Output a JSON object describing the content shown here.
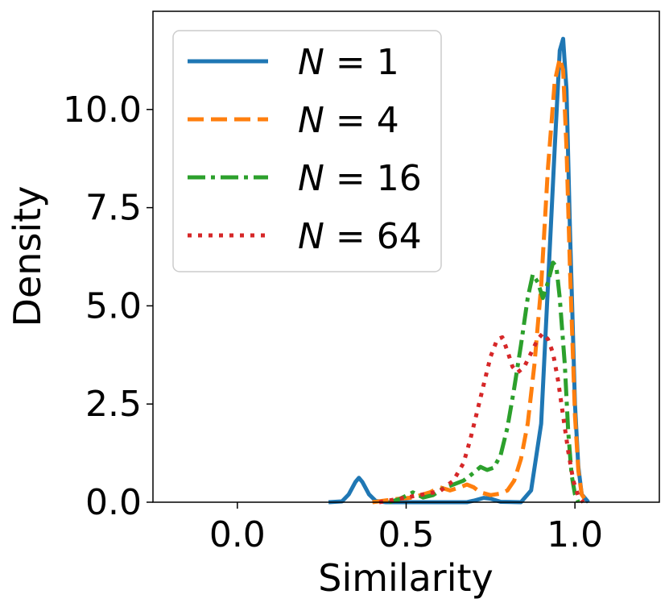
{
  "chart_data": {
    "type": "line",
    "xlabel": "Similarity",
    "ylabel": "Density",
    "xlim": [
      -0.25,
      1.25
    ],
    "ylim": [
      0,
      12.5
    ],
    "xticks": [
      "0.0",
      "0.5",
      "1.0"
    ],
    "xtick_values": [
      0.0,
      0.5,
      1.0
    ],
    "yticks": [
      "0.0",
      "2.5",
      "5.0",
      "7.5",
      "10.0"
    ],
    "ytick_values": [
      0.0,
      2.5,
      5.0,
      7.5,
      10.0
    ],
    "grid": false,
    "legend_position": "upper-left",
    "series": [
      {
        "name": "N = 1",
        "legend_var": "N",
        "legend_val": "1",
        "color": "#1f77b4",
        "style": "solid",
        "points": [
          [
            0.27,
            0
          ],
          [
            0.31,
            0.02
          ],
          [
            0.33,
            0.2
          ],
          [
            0.35,
            0.52
          ],
          [
            0.36,
            0.62
          ],
          [
            0.37,
            0.52
          ],
          [
            0.39,
            0.2
          ],
          [
            0.41,
            0.03
          ],
          [
            0.44,
            0
          ],
          [
            0.6,
            0
          ],
          [
            0.68,
            0
          ],
          [
            0.7,
            0.04
          ],
          [
            0.73,
            0.11
          ],
          [
            0.75,
            0.09
          ],
          [
            0.78,
            0.01
          ],
          [
            0.84,
            0
          ],
          [
            0.87,
            0.3
          ],
          [
            0.9,
            2.0
          ],
          [
            0.92,
            5.5
          ],
          [
            0.94,
            9.0
          ],
          [
            0.955,
            11.5
          ],
          [
            0.965,
            11.8
          ],
          [
            0.975,
            10.5
          ],
          [
            0.985,
            7.0
          ],
          [
            1.0,
            2.5
          ],
          [
            1.01,
            0.9
          ],
          [
            1.02,
            0.2
          ],
          [
            1.04,
            0
          ]
        ]
      },
      {
        "name": "N = 4",
        "legend_var": "N",
        "legend_val": "4",
        "color": "#ff7f0e",
        "style": "dashed",
        "points": [
          [
            0.4,
            0
          ],
          [
            0.47,
            0.08
          ],
          [
            0.52,
            0.12
          ],
          [
            0.57,
            0.25
          ],
          [
            0.6,
            0.38
          ],
          [
            0.63,
            0.3
          ],
          [
            0.66,
            0.38
          ],
          [
            0.68,
            0.45
          ],
          [
            0.7,
            0.38
          ],
          [
            0.72,
            0.25
          ],
          [
            0.75,
            0.18
          ],
          [
            0.78,
            0.22
          ],
          [
            0.8,
            0.3
          ],
          [
            0.82,
            0.55
          ],
          [
            0.84,
            1.1
          ],
          [
            0.86,
            2.0
          ],
          [
            0.88,
            3.5
          ],
          [
            0.9,
            5.5
          ],
          [
            0.92,
            8.5
          ],
          [
            0.94,
            10.7
          ],
          [
            0.955,
            11.3
          ],
          [
            0.965,
            11.0
          ],
          [
            0.975,
            9.0
          ],
          [
            0.985,
            6.0
          ],
          [
            1.0,
            2.2
          ],
          [
            1.01,
            0.8
          ],
          [
            1.02,
            0.2
          ],
          [
            1.035,
            0
          ]
        ]
      },
      {
        "name": "N = 16",
        "legend_var": "N",
        "legend_val": "16",
        "color": "#2ca02c",
        "style": "dashdot",
        "points": [
          [
            0.45,
            0
          ],
          [
            0.48,
            0.08
          ],
          [
            0.52,
            0.25
          ],
          [
            0.55,
            0.12
          ],
          [
            0.58,
            0.18
          ],
          [
            0.61,
            0.35
          ],
          [
            0.64,
            0.45
          ],
          [
            0.67,
            0.55
          ],
          [
            0.7,
            0.75
          ],
          [
            0.72,
            0.9
          ],
          [
            0.74,
            0.82
          ],
          [
            0.76,
            0.88
          ],
          [
            0.78,
            1.2
          ],
          [
            0.8,
            1.9
          ],
          [
            0.82,
            2.9
          ],
          [
            0.84,
            4.0
          ],
          [
            0.86,
            5.2
          ],
          [
            0.875,
            5.8
          ],
          [
            0.89,
            5.6
          ],
          [
            0.905,
            5.2
          ],
          [
            0.92,
            5.6
          ],
          [
            0.935,
            6.1
          ],
          [
            0.945,
            6.0
          ],
          [
            0.955,
            5.2
          ],
          [
            0.97,
            3.5
          ],
          [
            0.98,
            1.8
          ],
          [
            0.99,
            0.7
          ],
          [
            1.0,
            0.2
          ],
          [
            1.01,
            0
          ]
        ]
      },
      {
        "name": "N = 64",
        "legend_var": "N",
        "legend_val": "64",
        "color": "#d62728",
        "style": "dotted",
        "points": [
          [
            0.42,
            0
          ],
          [
            0.46,
            0.06
          ],
          [
            0.5,
            0.12
          ],
          [
            0.55,
            0.2
          ],
          [
            0.6,
            0.28
          ],
          [
            0.64,
            0.55
          ],
          [
            0.67,
            1.0
          ],
          [
            0.69,
            1.6
          ],
          [
            0.71,
            2.3
          ],
          [
            0.73,
            3.0
          ],
          [
            0.75,
            3.7
          ],
          [
            0.77,
            4.15
          ],
          [
            0.785,
            4.2
          ],
          [
            0.8,
            3.85
          ],
          [
            0.815,
            3.45
          ],
          [
            0.83,
            3.3
          ],
          [
            0.85,
            3.45
          ],
          [
            0.87,
            3.8
          ],
          [
            0.89,
            4.15
          ],
          [
            0.905,
            4.3
          ],
          [
            0.92,
            4.15
          ],
          [
            0.935,
            3.8
          ],
          [
            0.95,
            3.1
          ],
          [
            0.965,
            2.2
          ],
          [
            0.98,
            1.3
          ],
          [
            0.995,
            0.55
          ],
          [
            1.01,
            0.15
          ],
          [
            1.025,
            0
          ]
        ]
      }
    ]
  }
}
